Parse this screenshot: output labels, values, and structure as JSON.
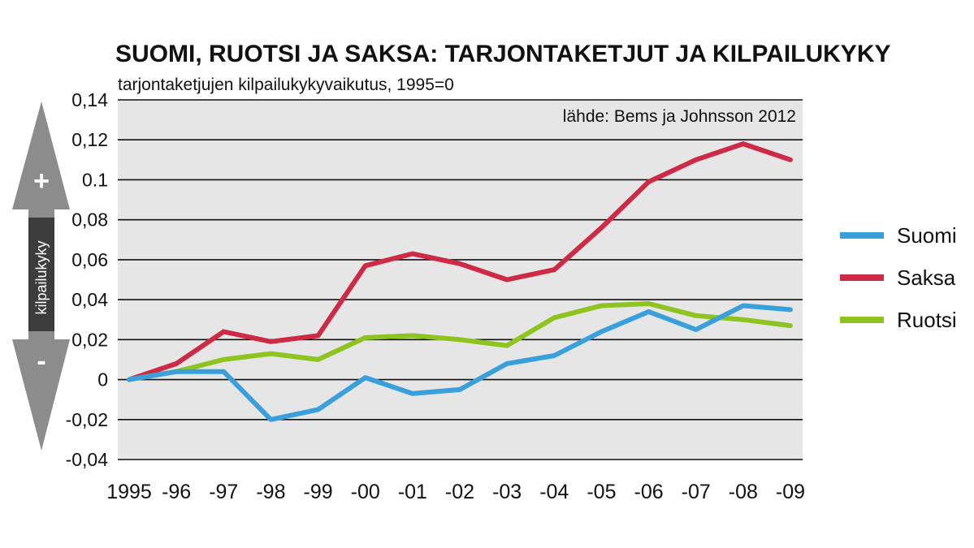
{
  "chart_data": {
    "type": "line",
    "title": "SUOMI, RUOTSI JA SAKSA: TARJONTAKETJUT JA KILPAILUKYKY",
    "subtitle": "tarjontaketjujen kilpailukykyvaikutus, 1995=0",
    "source": "lähde: Bems ja Johnsson 2012",
    "ylabel": "kilpailukyky",
    "ylim": [
      -0.04,
      0.14
    ],
    "y_ticks": [
      {
        "value": 0.14,
        "label": "0,14"
      },
      {
        "value": 0.12,
        "label": "0,12"
      },
      {
        "value": 0.1,
        "label": "0.1"
      },
      {
        "value": 0.08,
        "label": "0,08"
      },
      {
        "value": 0.06,
        "label": "0,06"
      },
      {
        "value": 0.04,
        "label": "0,04"
      },
      {
        "value": 0.02,
        "label": "0,02"
      },
      {
        "value": 0.0,
        "label": "0"
      },
      {
        "value": -0.02,
        "label": "-0,02"
      },
      {
        "value": -0.04,
        "label": "-0,04"
      }
    ],
    "categories": [
      "1995",
      "-96",
      "-97",
      "-98",
      "-99",
      "-00",
      "-01",
      "-02",
      "-03",
      "-04",
      "-05",
      "-06",
      "-07",
      "-08",
      "-09"
    ],
    "grid": true,
    "legend_position": "right",
    "direction_markers": {
      "up": "+",
      "down": "-"
    },
    "series": [
      {
        "name": "Suomi",
        "color": "#3aa0dc",
        "values": [
          0.0,
          0.004,
          0.004,
          -0.02,
          -0.015,
          0.001,
          -0.007,
          -0.005,
          0.008,
          0.012,
          0.024,
          0.034,
          0.025,
          0.037,
          0.035
        ]
      },
      {
        "name": "Saksa",
        "color": "#cc2a45",
        "values": [
          0.0,
          0.008,
          0.024,
          0.019,
          0.022,
          0.057,
          0.063,
          0.058,
          0.05,
          0.055,
          0.076,
          0.099,
          0.11,
          0.118,
          0.11
        ]
      },
      {
        "name": "Ruotsi",
        "color": "#8fc31f",
        "values": [
          0.0,
          0.004,
          0.01,
          0.013,
          0.01,
          0.021,
          0.022,
          0.02,
          0.017,
          0.031,
          0.037,
          0.038,
          0.032,
          0.03,
          0.027
        ]
      }
    ]
  }
}
